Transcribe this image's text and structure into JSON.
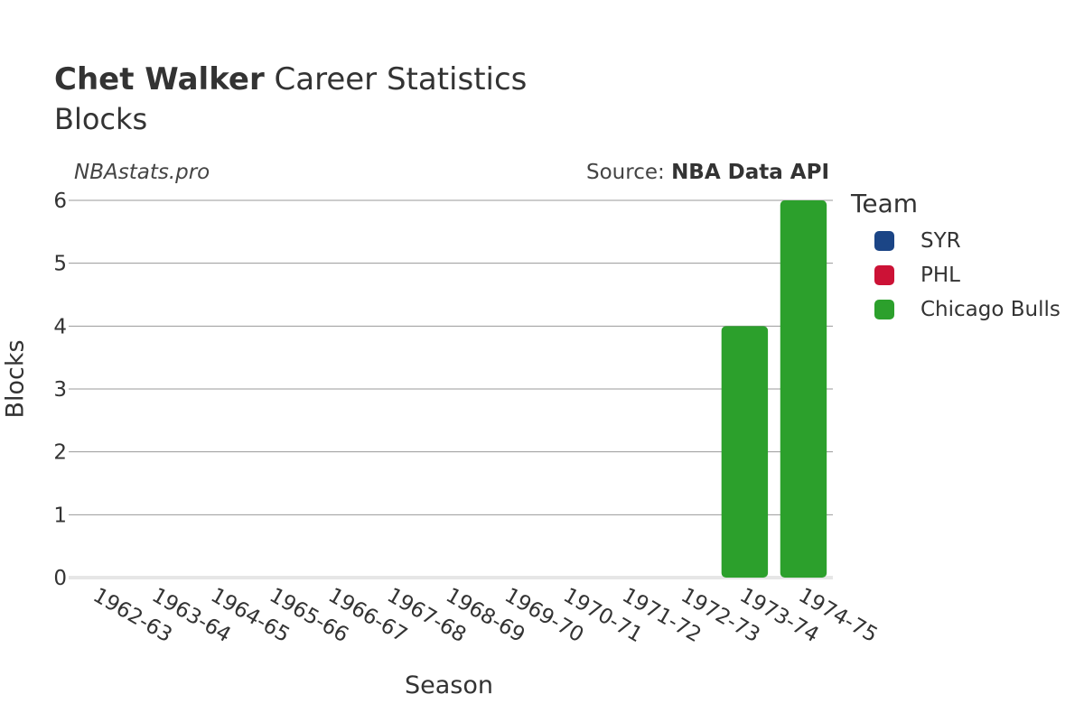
{
  "header": {
    "title_bold": "Chet Walker",
    "title_rest": " Career Statistics",
    "subtitle": "Blocks",
    "watermark": "NBAstats.pro",
    "source_prefix": "Source: ",
    "source_bold": "NBA Data API"
  },
  "legend": {
    "title": "Team",
    "items": [
      {
        "label": "SYR",
        "color": "#1b4586"
      },
      {
        "label": "PHL",
        "color": "#cc1236"
      },
      {
        "label": "Chicago Bulls",
        "color": "#2ca02c"
      }
    ]
  },
  "chart_data": {
    "type": "bar",
    "title": "Chet Walker Career Statistics",
    "subtitle": "Blocks",
    "xlabel": "Season",
    "ylabel": "Blocks",
    "ylim": [
      0,
      6
    ],
    "yticks": [
      0,
      1,
      2,
      3,
      4,
      5,
      6
    ],
    "grid": true,
    "legend_position": "right",
    "categories": [
      "1962-63",
      "1963-64",
      "1964-65",
      "1965-66",
      "1966-67",
      "1967-68",
      "1968-69",
      "1969-70",
      "1970-71",
      "1971-72",
      "1972-73",
      "1973-74",
      "1974-75"
    ],
    "series": [
      {
        "name": "SYR",
        "color": "#1b4586",
        "values": [
          0,
          0,
          0,
          0,
          0,
          0,
          0,
          0,
          0,
          0,
          0,
          0,
          0
        ]
      },
      {
        "name": "PHL",
        "color": "#cc1236",
        "values": [
          0,
          0,
          0,
          0,
          0,
          0,
          0,
          0,
          0,
          0,
          0,
          0,
          0
        ]
      },
      {
        "name": "Chicago Bulls",
        "color": "#2ca02c",
        "values": [
          0,
          0,
          0,
          0,
          0,
          0,
          0,
          0,
          0,
          0,
          0,
          4,
          6
        ]
      }
    ]
  }
}
